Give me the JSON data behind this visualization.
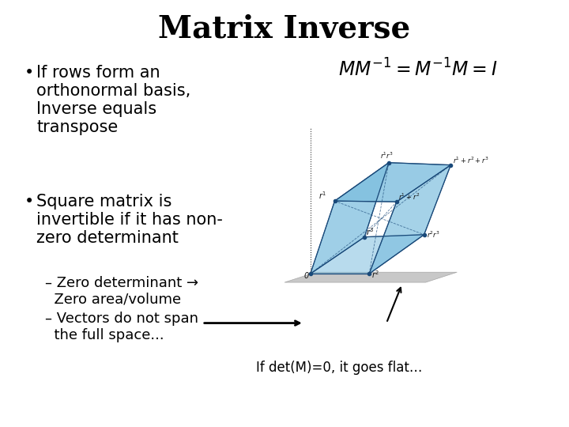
{
  "title": "Matrix Inverse",
  "title_fontsize": 28,
  "title_fontweight": "bold",
  "background_color": "#ffffff",
  "bullet1_line1": "If rows form an",
  "bullet1_line2": "orthonormal basis,",
  "bullet1_line3": "Inverse equals",
  "bullet1_line4": "transpose",
  "bullet2_line1": "Square matrix is",
  "bullet2_line2": "invertible if it has non-",
  "bullet2_line3": "zero determinant",
  "sub1_line1": "– Zero determinant →",
  "sub1_line2": "  Zero area/volume",
  "sub2_line1": "– Vectors do not span",
  "sub2_line2": "  the full space...",
  "caption": "If det(M)=0, it goes flat…",
  "text_color": "#000000",
  "bullet_fontsize": 15,
  "sub_fontsize": 13,
  "formula_fontsize": 17,
  "caption_fontsize": 12,
  "box_face_color": "#7fbfdf",
  "box_edge_color": "#1a4a7a",
  "floor_color": "#bbbbbb",
  "axis_color": "#555555"
}
